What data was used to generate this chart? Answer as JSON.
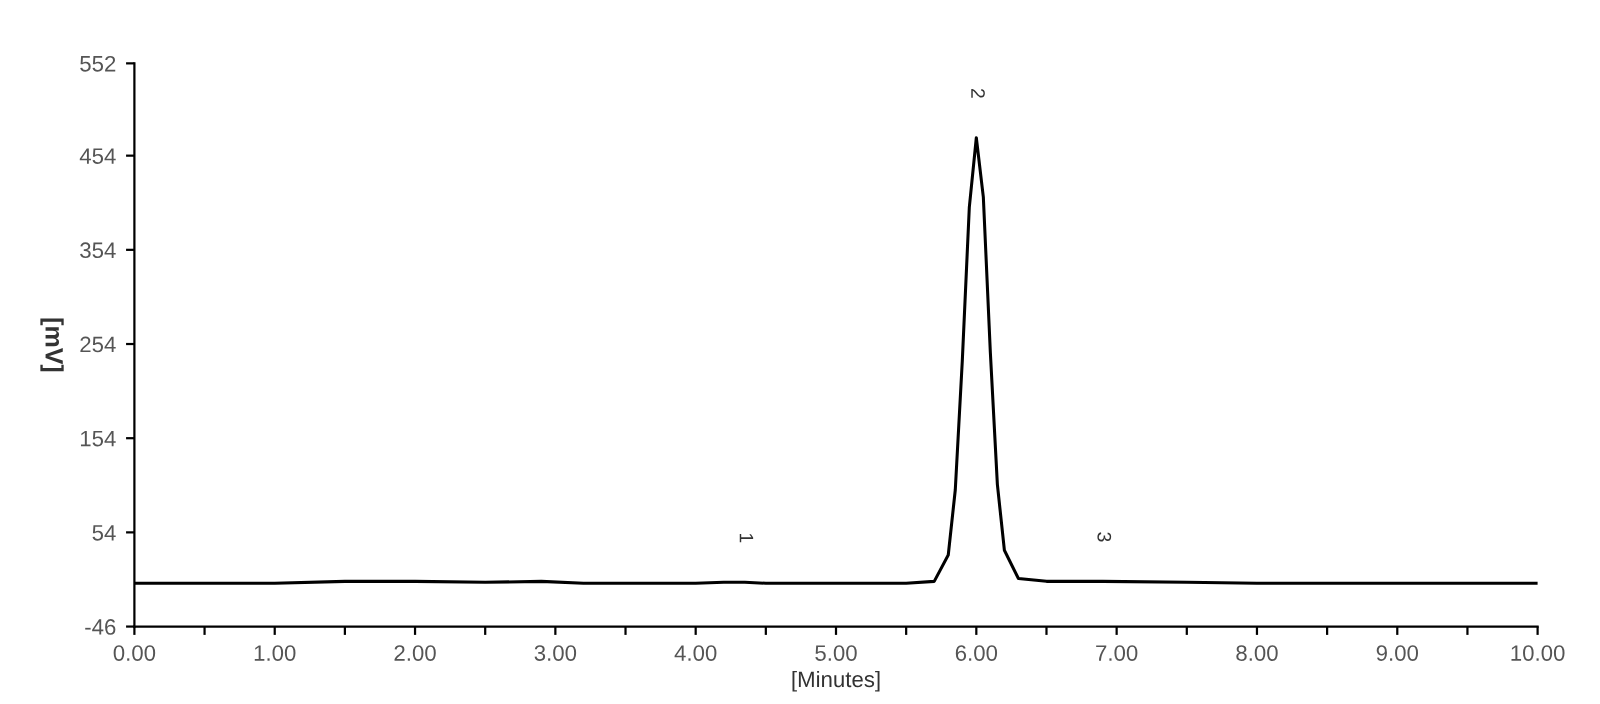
{
  "chart_data": {
    "type": "line",
    "xlabel": "[Minutes]",
    "ylabel": "[mV]",
    "xlim": [
      0,
      10
    ],
    "ylim": [
      -46,
      552
    ],
    "xticks": [
      {
        "value": 0,
        "label": "0.00"
      },
      {
        "value": 0.5,
        "label": null
      },
      {
        "value": 1,
        "label": "1.00"
      },
      {
        "value": 1.5,
        "label": null
      },
      {
        "value": 2,
        "label": "2.00"
      },
      {
        "value": 2.5,
        "label": null
      },
      {
        "value": 3,
        "label": "3.00"
      },
      {
        "value": 3.5,
        "label": null
      },
      {
        "value": 4,
        "label": "4.00"
      },
      {
        "value": 4.5,
        "label": null
      },
      {
        "value": 5,
        "label": "5.00"
      },
      {
        "value": 5.5,
        "label": null
      },
      {
        "value": 6,
        "label": "6.00"
      },
      {
        "value": 6.5,
        "label": null
      },
      {
        "value": 7,
        "label": "7.00"
      },
      {
        "value": 7.5,
        "label": null
      },
      {
        "value": 8,
        "label": "8.00"
      },
      {
        "value": 8.5,
        "label": null
      },
      {
        "value": 9,
        "label": "9.00"
      },
      {
        "value": 9.5,
        "label": null
      },
      {
        "value": 10,
        "label": "10.00"
      }
    ],
    "yticks": [
      -46,
      54,
      154,
      254,
      354,
      454,
      552
    ],
    "grid": false,
    "marker": "none",
    "line_style": "solid",
    "series": [
      {
        "color": "#000000",
        "x": [
          0,
          1,
          1.5,
          2,
          2.5,
          2.9,
          3.2,
          4,
          4.2,
          4.35,
          4.5,
          5.5,
          5.7,
          5.8,
          5.85,
          5.9,
          5.95,
          6.0,
          6.05,
          6.1,
          6.15,
          6.2,
          6.3,
          6.5,
          6.9,
          7.5,
          8,
          9,
          10
        ],
        "values": [
          0,
          0,
          2,
          2,
          1,
          2,
          0,
          0,
          1,
          1,
          0,
          0,
          2,
          30,
          99,
          236,
          399,
          473,
          410,
          245,
          105,
          35,
          5,
          2,
          2,
          1,
          0,
          0,
          0
        ]
      }
    ],
    "annotations": [
      {
        "text": "1",
        "x": 4.35,
        "y": 1
      },
      {
        "text": "2",
        "x": 6.0,
        "y": 473
      },
      {
        "text": "3",
        "x": 6.9,
        "y": 2
      }
    ]
  }
}
